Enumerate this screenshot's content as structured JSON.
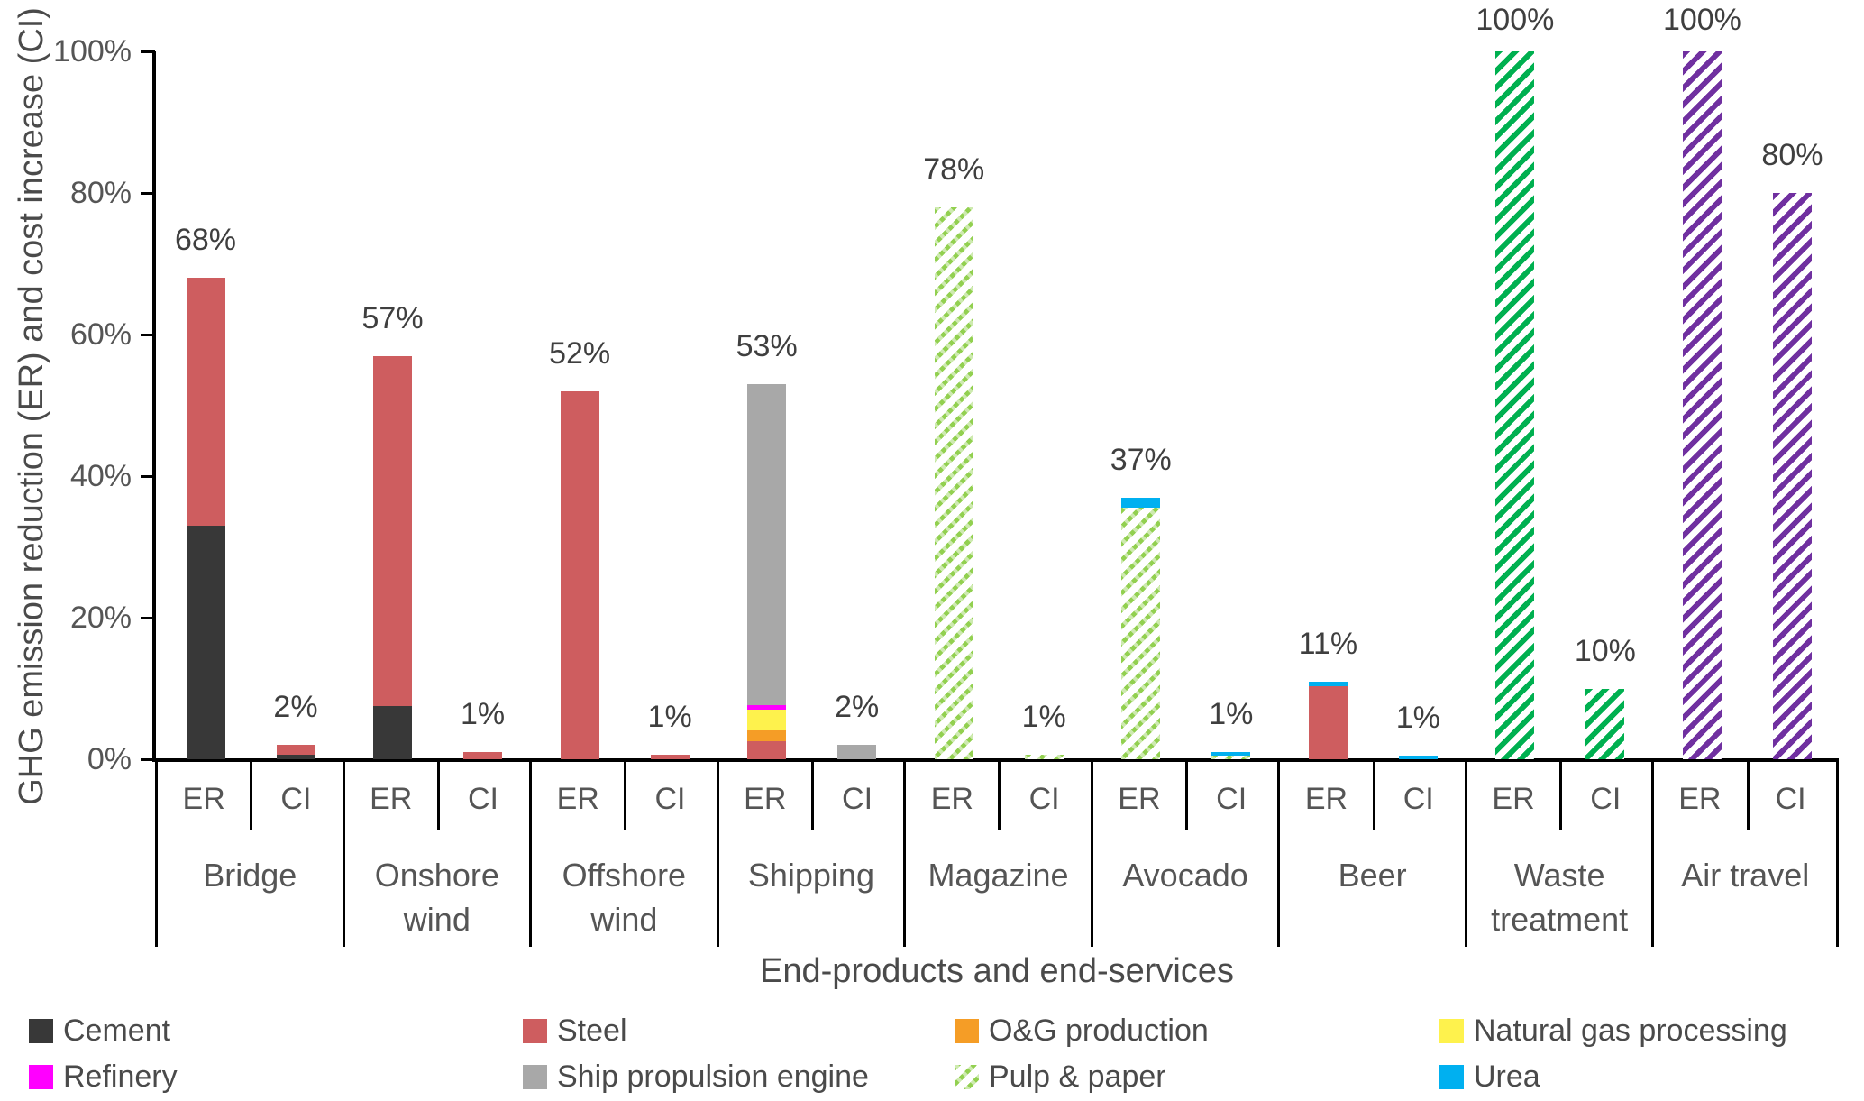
{
  "chart_data": {
    "type": "bar",
    "stacked": true,
    "ylabel": "GHG emission reduction (ER) and cost increase (CI)",
    "xlabel": "End-products and end-services",
    "ylim": [
      0,
      100
    ],
    "grid": false,
    "legend_position": "bottom",
    "bar_measures": [
      "ER",
      "CI"
    ],
    "yticks": [
      {
        "value": 0,
        "label": "0%"
      },
      {
        "value": 20,
        "label": "20%"
      },
      {
        "value": 40,
        "label": "40%"
      },
      {
        "value": 60,
        "label": "60%"
      },
      {
        "value": 80,
        "label": "80%"
      },
      {
        "value": 100,
        "label": "100%"
      }
    ],
    "categories": [
      "Bridge",
      "Onshore wind",
      "Offshore wind",
      "Shipping",
      "Magazine",
      "Avocado",
      "Beer",
      "Waste treatment",
      "Air travel"
    ],
    "palette": {
      "Cement": {
        "color": "#383838",
        "hatch": false
      },
      "Steel": {
        "color": "#CE5D5F",
        "hatch": false
      },
      "O&G production": {
        "color": "#F59D26",
        "hatch": false
      },
      "Natural gas processing": {
        "color": "#FEF24D",
        "hatch": false
      },
      "Refinery": {
        "color": "#FF00FF",
        "hatch": false
      },
      "Ship propulsion engine": {
        "color": "#A8A8A8",
        "hatch": false
      },
      "Pulp & paper": {
        "color": "#92D050",
        "hatch": true,
        "dashed": true
      },
      "Urea": {
        "color": "#00B0F0",
        "hatch": false
      },
      "Waste treatment": {
        "color": "#00B050",
        "hatch": true
      },
      "Air travel": {
        "color": "#7030A0",
        "hatch": true
      }
    },
    "groups": [
      {
        "category": "Bridge",
        "ER": {
          "total": 68,
          "label": "68%",
          "segments": [
            {
              "name": "Cement",
              "value": 33
            },
            {
              "name": "Steel",
              "value": 35
            }
          ]
        },
        "CI": {
          "total": 2,
          "label": "2%",
          "segments": [
            {
              "name": "Cement",
              "value": 0.7
            },
            {
              "name": "Steel",
              "value": 1.3
            }
          ]
        }
      },
      {
        "category": "Onshore wind",
        "ER": {
          "total": 57,
          "label": "57%",
          "segments": [
            {
              "name": "Cement",
              "value": 7.5
            },
            {
              "name": "Steel",
              "value": 49.5
            }
          ]
        },
        "CI": {
          "total": 1,
          "label": "1%",
          "segments": [
            {
              "name": "Steel",
              "value": 1
            }
          ]
        }
      },
      {
        "category": "Offshore wind",
        "ER": {
          "total": 52,
          "label": "52%",
          "segments": [
            {
              "name": "Steel",
              "value": 52
            }
          ]
        },
        "CI": {
          "total": 1,
          "label": "1%",
          "segments": [
            {
              "name": "Steel",
              "value": 0.6
            }
          ]
        }
      },
      {
        "category": "Shipping",
        "ER": {
          "total": 53,
          "label": "53%",
          "segments": [
            {
              "name": "Steel",
              "value": 2.5
            },
            {
              "name": "O&G production",
              "value": 1.6
            },
            {
              "name": "Natural gas processing",
              "value": 2.9
            },
            {
              "name": "Refinery",
              "value": 0.7
            },
            {
              "name": "Ship propulsion engine",
              "value": 45.3
            }
          ]
        },
        "CI": {
          "total": 2,
          "label": "2%",
          "segments": [
            {
              "name": "Ship propulsion engine",
              "value": 2
            }
          ]
        }
      },
      {
        "category": "Magazine",
        "ER": {
          "total": 78,
          "label": "78%",
          "segments": [
            {
              "name": "Pulp & paper",
              "value": 78
            }
          ]
        },
        "CI": {
          "total": 1,
          "label": "1%",
          "segments": [
            {
              "name": "Pulp & paper",
              "value": 0.7
            }
          ]
        }
      },
      {
        "category": "Avocado",
        "ER": {
          "total": 37,
          "label": "37%",
          "segments": [
            {
              "name": "Pulp & paper",
              "value": 35.5
            },
            {
              "name": "Urea",
              "value": 1.5
            }
          ]
        },
        "CI": {
          "total": 1,
          "label": "1%",
          "segments": [
            {
              "name": "Pulp & paper",
              "value": 0.5
            },
            {
              "name": "Urea",
              "value": 0.5
            }
          ]
        }
      },
      {
        "category": "Beer",
        "ER": {
          "total": 11,
          "label": "11%",
          "segments": [
            {
              "name": "Steel",
              "value": 10.3
            },
            {
              "name": "Urea",
              "value": 0.7
            }
          ]
        },
        "CI": {
          "total": 1,
          "label": "1%",
          "segments": [
            {
              "name": "Urea",
              "value": 0.5
            }
          ]
        }
      },
      {
        "category": "Waste treatment",
        "ER": {
          "total": 100,
          "label": "100%",
          "segments": [
            {
              "name": "Waste treatment",
              "value": 100
            }
          ]
        },
        "CI": {
          "total": 10,
          "label": "10%",
          "segments": [
            {
              "name": "Waste treatment",
              "value": 10
            }
          ]
        }
      },
      {
        "category": "Air travel",
        "ER": {
          "total": 100,
          "label": "100%",
          "segments": [
            {
              "name": "Air travel",
              "value": 100
            }
          ]
        },
        "CI": {
          "total": 80,
          "label": "80%",
          "segments": [
            {
              "name": "Air travel",
              "value": 80
            }
          ]
        }
      }
    ],
    "legend": [
      {
        "label": "Cement",
        "key": "Cement"
      },
      {
        "label": "Steel",
        "key": "Steel"
      },
      {
        "label": "O&G production",
        "key": "O&G production"
      },
      {
        "label": "Natural gas processing",
        "key": "Natural gas processing"
      },
      {
        "label": "Refinery",
        "key": "Refinery"
      },
      {
        "label": "Ship propulsion engine",
        "key": "Ship propulsion engine"
      },
      {
        "label": "Pulp & paper",
        "key": "Pulp & paper"
      },
      {
        "label": "Urea",
        "key": "Urea"
      }
    ]
  }
}
